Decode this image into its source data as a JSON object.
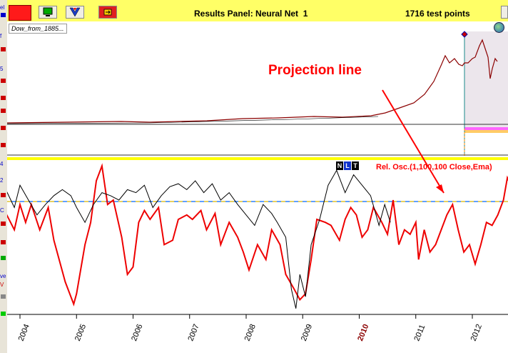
{
  "left_panel": {
    "items": [
      "el",
      "f",
      "5",
      "4",
      "2",
      "C",
      "ve",
      "V"
    ]
  },
  "toolbar": {
    "title": "Results Panel: Neural Net  1",
    "points": "1716 test points"
  },
  "top_chart": {
    "series_label": "Dow_from_1885..."
  },
  "annotation": {
    "text": "Projection line"
  },
  "indicator": {
    "buttons": [
      "N",
      "L",
      "T"
    ],
    "label": "Rel. Osc.(1,100,100 Close,Ema)"
  },
  "chart_data": {
    "type": "line",
    "x_axis": {
      "ticks": [
        "2004",
        "2005",
        "2006",
        "2007",
        "2008",
        "2009",
        "2010",
        "2011",
        "2012"
      ],
      "highlighted_tick": "2010"
    },
    "series": [
      {
        "color": "#ff0000",
        "points": [
          [
            2003.5,
            0.62
          ],
          [
            2003.7,
            0.7
          ],
          [
            2003.9,
            0.55
          ],
          [
            2004.0,
            0.72
          ],
          [
            2004.1,
            0.6
          ],
          [
            2004.2,
            0.72
          ],
          [
            2004.35,
            0.55
          ],
          [
            2004.5,
            0.7
          ],
          [
            2004.6,
            0.48
          ],
          [
            2004.8,
            0.2
          ],
          [
            2004.95,
            0.05
          ],
          [
            2005.0,
            0.12
          ],
          [
            2005.15,
            0.45
          ],
          [
            2005.25,
            0.6
          ],
          [
            2005.35,
            0.88
          ],
          [
            2005.45,
            0.98
          ],
          [
            2005.55,
            0.72
          ],
          [
            2005.65,
            0.75
          ],
          [
            2005.8,
            0.5
          ],
          [
            2005.9,
            0.25
          ],
          [
            2006.0,
            0.3
          ],
          [
            2006.1,
            0.6
          ],
          [
            2006.2,
            0.68
          ],
          [
            2006.3,
            0.62
          ],
          [
            2006.45,
            0.7
          ],
          [
            2006.55,
            0.45
          ],
          [
            2006.7,
            0.48
          ],
          [
            2006.8,
            0.62
          ],
          [
            2006.95,
            0.65
          ],
          [
            2007.05,
            0.62
          ],
          [
            2007.2,
            0.68
          ],
          [
            2007.3,
            0.55
          ],
          [
            2007.45,
            0.66
          ],
          [
            2007.55,
            0.45
          ],
          [
            2007.7,
            0.6
          ],
          [
            2007.85,
            0.5
          ],
          [
            2007.95,
            0.4
          ],
          [
            2008.05,
            0.28
          ],
          [
            2008.2,
            0.45
          ],
          [
            2008.35,
            0.35
          ],
          [
            2008.45,
            0.55
          ],
          [
            2008.6,
            0.45
          ],
          [
            2008.7,
            0.25
          ],
          [
            2008.85,
            0.15
          ],
          [
            2008.95,
            0.08
          ],
          [
            2009.05,
            0.12
          ],
          [
            2009.15,
            0.35
          ],
          [
            2009.25,
            0.62
          ],
          [
            2009.4,
            0.6
          ],
          [
            2009.5,
            0.58
          ],
          [
            2009.65,
            0.48
          ],
          [
            2009.75,
            0.62
          ],
          [
            2009.85,
            0.7
          ],
          [
            2009.95,
            0.65
          ],
          [
            2010.05,
            0.5
          ],
          [
            2010.15,
            0.55
          ],
          [
            2010.25,
            0.7
          ],
          [
            2010.4,
            0.6
          ],
          [
            2010.5,
            0.52
          ],
          [
            2010.6,
            0.75
          ],
          [
            2010.7,
            0.45
          ],
          [
            2010.8,
            0.55
          ],
          [
            2010.9,
            0.52
          ],
          [
            2011.0,
            0.6
          ],
          [
            2011.05,
            0.35
          ],
          [
            2011.15,
            0.55
          ],
          [
            2011.25,
            0.4
          ],
          [
            2011.35,
            0.45
          ],
          [
            2011.45,
            0.55
          ],
          [
            2011.55,
            0.65
          ],
          [
            2011.65,
            0.72
          ],
          [
            2011.75,
            0.55
          ],
          [
            2011.85,
            0.4
          ],
          [
            2011.95,
            0.45
          ],
          [
            2012.05,
            0.32
          ],
          [
            2012.15,
            0.45
          ],
          [
            2012.25,
            0.6
          ],
          [
            2012.35,
            0.58
          ],
          [
            2012.45,
            0.65
          ],
          [
            2012.55,
            0.75
          ],
          [
            2012.62,
            0.9
          ],
          [
            2012.68,
            0.85
          ]
        ]
      },
      {
        "color": "#000000",
        "points": [
          [
            2003.5,
            0.88
          ],
          [
            2003.6,
            0.98
          ],
          [
            2003.75,
            0.82
          ],
          [
            2003.9,
            0.7
          ],
          [
            2004.0,
            0.85
          ],
          [
            2004.15,
            0.75
          ],
          [
            2004.3,
            0.65
          ],
          [
            2004.45,
            0.72
          ],
          [
            2004.6,
            0.78
          ],
          [
            2004.75,
            0.82
          ],
          [
            2004.9,
            0.78
          ],
          [
            2005.0,
            0.7
          ],
          [
            2005.15,
            0.6
          ],
          [
            2005.3,
            0.72
          ],
          [
            2005.45,
            0.8
          ],
          [
            2005.6,
            0.78
          ],
          [
            2005.75,
            0.75
          ],
          [
            2005.9,
            0.82
          ],
          [
            2006.05,
            0.8
          ],
          [
            2006.2,
            0.85
          ],
          [
            2006.35,
            0.7
          ],
          [
            2006.5,
            0.78
          ],
          [
            2006.65,
            0.84
          ],
          [
            2006.8,
            0.86
          ],
          [
            2006.95,
            0.82
          ],
          [
            2007.1,
            0.88
          ],
          [
            2007.25,
            0.8
          ],
          [
            2007.4,
            0.86
          ],
          [
            2007.55,
            0.75
          ],
          [
            2007.7,
            0.8
          ],
          [
            2007.85,
            0.72
          ],
          [
            2008.0,
            0.65
          ],
          [
            2008.15,
            0.58
          ],
          [
            2008.3,
            0.72
          ],
          [
            2008.45,
            0.66
          ],
          [
            2008.55,
            0.6
          ],
          [
            2008.7,
            0.5
          ],
          [
            2008.8,
            0.15
          ],
          [
            2008.88,
            0.02
          ],
          [
            2008.95,
            0.25
          ],
          [
            2009.05,
            0.1
          ],
          [
            2009.15,
            0.45
          ],
          [
            2009.3,
            0.62
          ],
          [
            2009.45,
            0.85
          ],
          [
            2009.6,
            0.95
          ],
          [
            2009.75,
            0.8
          ],
          [
            2009.9,
            0.92
          ],
          [
            2010.05,
            0.85
          ],
          [
            2010.2,
            0.78
          ],
          [
            2010.35,
            0.58
          ],
          [
            2010.45,
            0.72
          ],
          [
            2010.55,
            0.6
          ]
        ]
      }
    ],
    "reference_line_y": 0.68
  }
}
